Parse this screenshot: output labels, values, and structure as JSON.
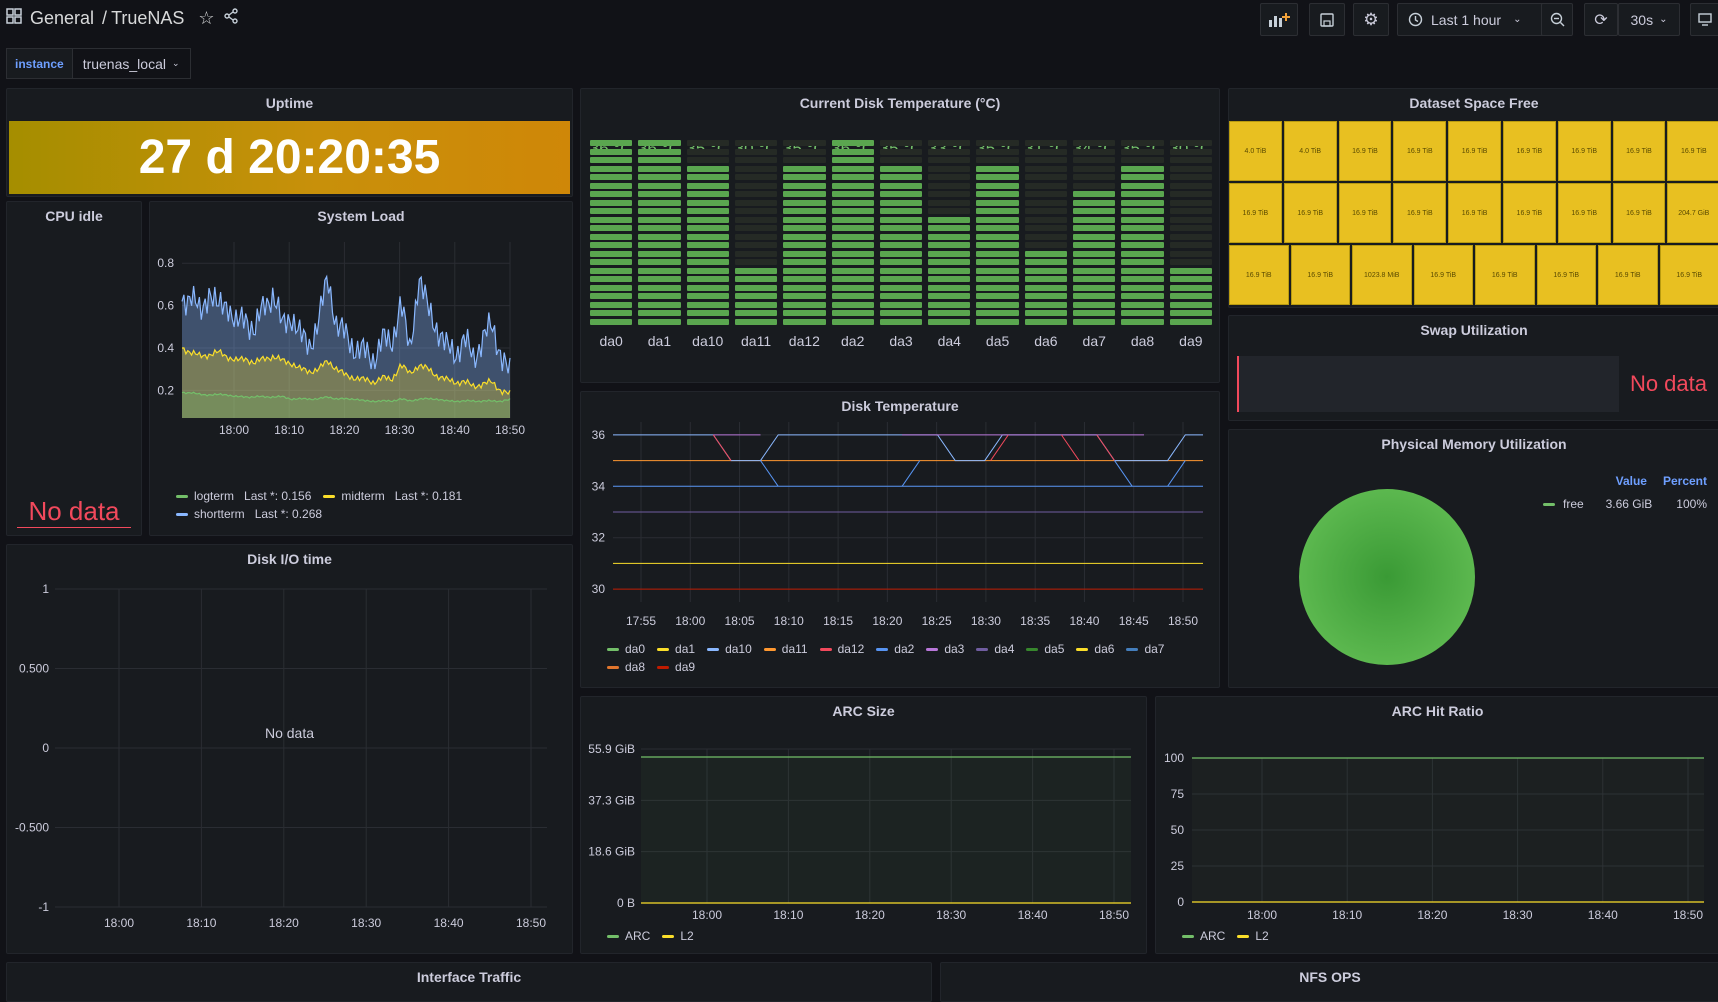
{
  "header": {
    "breadcrumb_root": "General",
    "breadcrumb_sep": "/",
    "breadcrumb_page": "TrueNAS",
    "time_range": "Last 1 hour",
    "refresh": "30s"
  },
  "variables": {
    "instance_label": "instance",
    "instance_value": "truenas_local"
  },
  "uptime": {
    "title": "Uptime",
    "value": "27 d 20:20:35"
  },
  "cpu_idle": {
    "title": "CPU idle",
    "nodata": "No data"
  },
  "system_load": {
    "title": "System Load",
    "legend": [
      {
        "name": "logterm",
        "last": "Last *: 0.156",
        "color": "#73bf69"
      },
      {
        "name": "midterm",
        "last": "Last *: 0.181",
        "color": "#fade2a"
      },
      {
        "name": "shortterm",
        "last": "Last *: 0.268",
        "color": "#8ab8ff"
      }
    ]
  },
  "disk_temp_current": {
    "title": "Current Disk Temperature (°C)",
    "disks": [
      {
        "name": "da0",
        "value": "36 °C",
        "temp": 36
      },
      {
        "name": "da1",
        "value": "36 °C",
        "temp": 36
      },
      {
        "name": "da10",
        "value": "35 °C",
        "temp": 35
      },
      {
        "name": "da11",
        "value": "30 °C",
        "temp": 30
      },
      {
        "name": "da12",
        "value": "35 °C",
        "temp": 35
      },
      {
        "name": "da2",
        "value": "36 °C",
        "temp": 36
      },
      {
        "name": "da3",
        "value": "35 °C",
        "temp": 35
      },
      {
        "name": "da4",
        "value": "33 °C",
        "temp": 33
      },
      {
        "name": "da5",
        "value": "35 °C",
        "temp": 35
      },
      {
        "name": "da6",
        "value": "31 °C",
        "temp": 31
      },
      {
        "name": "da7",
        "value": "34 °C",
        "temp": 34
      },
      {
        "name": "da8",
        "value": "35 °C",
        "temp": 35
      },
      {
        "name": "da9",
        "value": "30 °C",
        "temp": 30
      }
    ]
  },
  "dataset_free": {
    "title": "Dataset Space Free",
    "rows": [
      [
        "4.0 TiB",
        "4.0 TiB",
        "16.9 TiB",
        "16.9 TiB",
        "16.9 TiB",
        "16.9 TiB",
        "16.9 TiB",
        "16.9 TiB",
        "16.9 TiB"
      ],
      [
        "16.9 TiB",
        "16.9 TiB",
        "16.9 TiB",
        "16.9 TiB",
        "16.9 TiB",
        "16.9 TiB",
        "16.9 TiB",
        "16.9 TiB",
        "204.7 GiB"
      ],
      [
        "16.9 TiB",
        "16.9 TiB",
        "1023.8 MiB",
        "16.9 TiB",
        "16.9 TiB",
        "16.9 TiB",
        "16.9 TiB",
        "16.9 TiB"
      ]
    ]
  },
  "swap": {
    "title": "Swap Utilization",
    "nodata": "No data"
  },
  "memory": {
    "title": "Physical Memory Utilization",
    "col_value": "Value",
    "col_percent": "Percent",
    "legend_name": "free",
    "legend_value": "3.66 GiB",
    "legend_percent": "100%"
  },
  "disk_io": {
    "title": "Disk I/O time",
    "nodata": "No data"
  },
  "disk_temp": {
    "title": "Disk Temperature",
    "legend": [
      {
        "name": "da0",
        "color": "#73bf69"
      },
      {
        "name": "da1",
        "color": "#fade2a"
      },
      {
        "name": "da10",
        "color": "#8ab8ff"
      },
      {
        "name": "da11",
        "color": "#ff9830"
      },
      {
        "name": "da12",
        "color": "#f2495c"
      },
      {
        "name": "da2",
        "color": "#5794f2"
      },
      {
        "name": "da3",
        "color": "#b877d9"
      },
      {
        "name": "da4",
        "color": "#705da0"
      },
      {
        "name": "da5",
        "color": "#37872d"
      },
      {
        "name": "da6",
        "color": "#fade2a"
      },
      {
        "name": "da7",
        "color": "#447ebc"
      },
      {
        "name": "da8",
        "color": "#e0752d"
      },
      {
        "name": "da9",
        "color": "#bf1b00"
      }
    ]
  },
  "arc_size": {
    "title": "ARC Size",
    "legend": [
      {
        "name": "ARC",
        "color": "#73bf69"
      },
      {
        "name": "L2",
        "color": "#fade2a"
      }
    ]
  },
  "arc_hit": {
    "title": "ARC Hit Ratio",
    "legend": [
      {
        "name": "ARC",
        "color": "#73bf69"
      },
      {
        "name": "L2",
        "color": "#fade2a"
      }
    ]
  },
  "interface_traffic": {
    "title": "Interface Traffic"
  },
  "nfs_ops": {
    "title": "NFS OPS"
  },
  "chart_data": [
    {
      "type": "line",
      "panel": "System Load",
      "x_ticks": [
        "18:00",
        "18:10",
        "18:20",
        "18:30",
        "18:40",
        "18:50"
      ],
      "y_ticks": [
        "0.2",
        "0.4",
        "0.6",
        "0.8"
      ],
      "ylim": [
        0.07,
        0.9
      ],
      "series": [
        {
          "name": "shortterm",
          "approx_values": [
            0.62,
            0.66,
            0.55,
            0.68,
            0.58,
            0.62,
            0.5,
            0.55,
            0.48,
            0.6,
            0.66,
            0.5,
            0.56,
            0.45,
            0.42,
            0.52,
            0.74,
            0.5,
            0.46,
            0.4,
            0.38,
            0.35,
            0.44,
            0.42,
            0.62,
            0.38,
            0.74,
            0.58,
            0.5,
            0.4,
            0.38,
            0.44,
            0.35,
            0.45,
            0.5,
            0.38,
            0.268
          ]
        },
        {
          "name": "midterm",
          "approx_values": [
            0.4,
            0.38,
            0.36,
            0.37,
            0.38,
            0.36,
            0.34,
            0.35,
            0.33,
            0.35,
            0.36,
            0.34,
            0.33,
            0.3,
            0.29,
            0.3,
            0.34,
            0.3,
            0.27,
            0.26,
            0.25,
            0.24,
            0.26,
            0.25,
            0.32,
            0.28,
            0.32,
            0.3,
            0.27,
            0.25,
            0.24,
            0.24,
            0.22,
            0.23,
            0.24,
            0.2,
            0.181
          ]
        },
        {
          "name": "logterm",
          "approx_values": [
            0.19,
            0.19,
            0.18,
            0.18,
            0.18,
            0.18,
            0.17,
            0.17,
            0.17,
            0.17,
            0.17,
            0.17,
            0.16,
            0.16,
            0.16,
            0.16,
            0.17,
            0.16,
            0.16,
            0.16,
            0.15,
            0.15,
            0.15,
            0.15,
            0.16,
            0.15,
            0.16,
            0.16,
            0.16,
            0.15,
            0.15,
            0.15,
            0.15,
            0.15,
            0.15,
            0.15,
            0.156
          ]
        }
      ]
    },
    {
      "type": "bar",
      "panel": "Current Disk Temperature (°C)",
      "categories": [
        "da0",
        "da1",
        "da10",
        "da11",
        "da12",
        "da2",
        "da3",
        "da4",
        "da5",
        "da6",
        "da7",
        "da8",
        "da9"
      ],
      "values": [
        36,
        36,
        35,
        30,
        35,
        36,
        35,
        33,
        35,
        31,
        34,
        35,
        30
      ],
      "ylim": [
        0,
        36
      ]
    },
    {
      "type": "line",
      "panel": "Disk Temperature",
      "x_ticks": [
        "17:55",
        "18:00",
        "18:05",
        "18:10",
        "18:15",
        "18:20",
        "18:25",
        "18:30",
        "18:35",
        "18:40",
        "18:45",
        "18:50"
      ],
      "y_ticks": [
        "30",
        "32",
        "34",
        "36"
      ],
      "ylim": [
        29.5,
        36.5
      ],
      "series_levels": [
        {
          "name": "da9",
          "value": 30
        },
        {
          "name": "da1",
          "value": 31
        },
        {
          "name": "da4",
          "value": 33
        },
        {
          "name": "da2",
          "value": 34
        },
        {
          "name": "da11",
          "value": 35
        },
        {
          "name": "da10",
          "value": 36
        },
        {
          "name": "da12",
          "value": 35.5
        }
      ]
    },
    {
      "type": "line",
      "panel": "Disk I/O time",
      "y_ticks": [
        "-1",
        "-0.500",
        "0",
        "0.500",
        "1"
      ],
      "x_ticks": [
        "18:00",
        "18:10",
        "18:20",
        "18:30",
        "18:40",
        "18:50"
      ],
      "series": []
    },
    {
      "type": "line",
      "panel": "ARC Size",
      "y_ticks": [
        "0 B",
        "18.6 GiB",
        "37.3 GiB",
        "55.9 GiB"
      ],
      "x_ticks": [
        "18:00",
        "18:10",
        "18:20",
        "18:30",
        "18:40",
        "18:50"
      ],
      "series": [
        {
          "name": "ARC",
          "value_gib": 53
        },
        {
          "name": "L2",
          "value_gib": 0
        }
      ]
    },
    {
      "type": "line",
      "panel": "ARC Hit Ratio",
      "y_ticks": [
        "0",
        "25",
        "50",
        "75",
        "100"
      ],
      "x_ticks": [
        "18:00",
        "18:10",
        "18:20",
        "18:30",
        "18:40",
        "18:50"
      ],
      "series": [
        {
          "name": "ARC",
          "value": 100
        },
        {
          "name": "L2",
          "value": 0
        }
      ]
    },
    {
      "type": "pie",
      "panel": "Physical Memory Utilization",
      "slices": [
        {
          "name": "free",
          "value": 3.66,
          "percent": 100
        }
      ]
    }
  ]
}
